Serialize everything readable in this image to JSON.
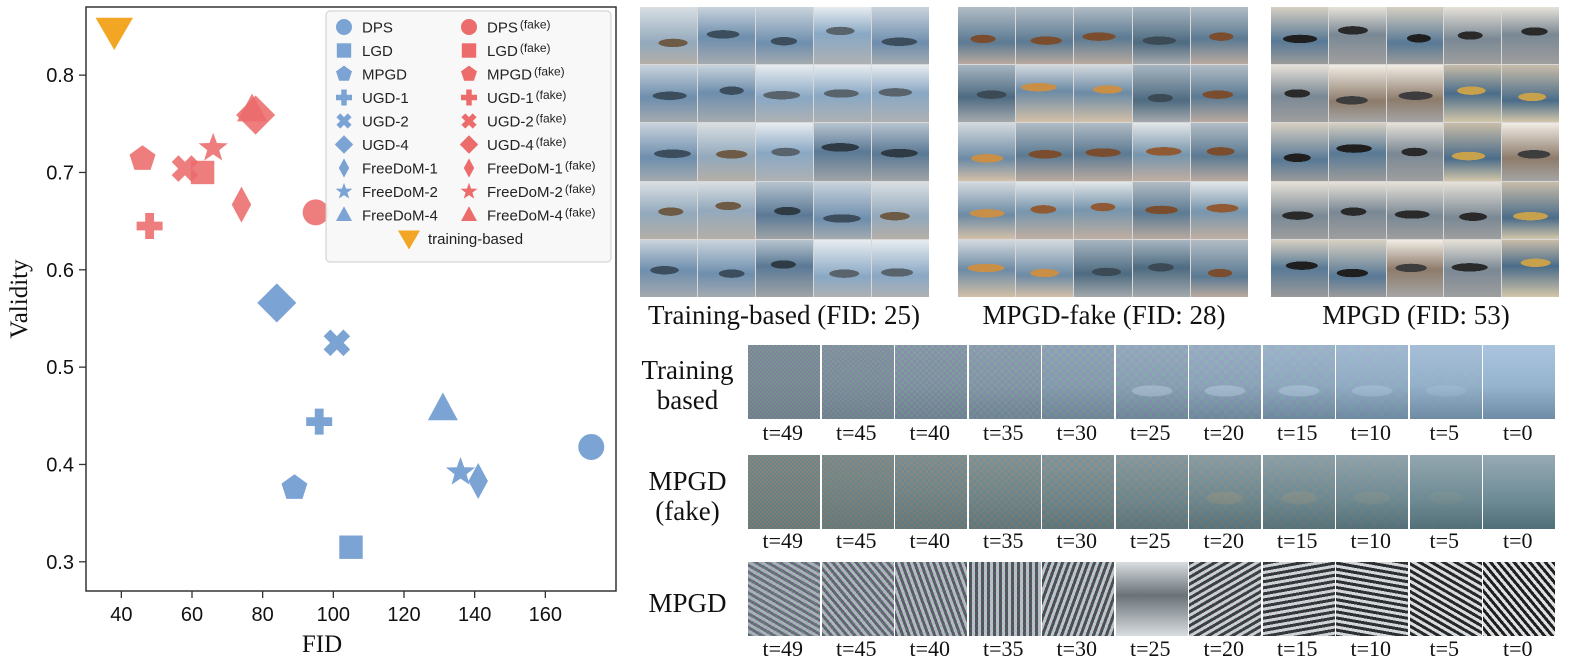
{
  "chart_data": {
    "type": "scatter",
    "xlabel": "FID",
    "ylabel": "Validity",
    "xlim": [
      30,
      180
    ],
    "ylim": [
      0.27,
      0.87
    ],
    "xticks": [
      40,
      60,
      80,
      100,
      120,
      140,
      160
    ],
    "yticks": [
      0.3,
      0.4,
      0.5,
      0.6,
      0.7,
      0.8
    ],
    "legend_position": "top-right",
    "colors": {
      "real": "#7ba3d4",
      "fake": "#ec6b6b",
      "training": "#f2a623"
    },
    "series": [
      {
        "name": "DPS",
        "marker": "circle",
        "group": "real",
        "x": 173,
        "y": 0.418
      },
      {
        "name": "LGD",
        "marker": "square",
        "group": "real",
        "x": 105,
        "y": 0.315
      },
      {
        "name": "MPGD",
        "marker": "pentagon",
        "group": "real",
        "x": 89,
        "y": 0.376
      },
      {
        "name": "UGD-1",
        "marker": "plus",
        "group": "real",
        "x": 96,
        "y": 0.444
      },
      {
        "name": "UGD-2",
        "marker": "x",
        "group": "real",
        "x": 101,
        "y": 0.525
      },
      {
        "name": "UGD-4",
        "marker": "diamond",
        "group": "real",
        "x": 84,
        "y": 0.566
      },
      {
        "name": "FreeDoM-1",
        "marker": "thin-diamond",
        "group": "real",
        "x": 141,
        "y": 0.383
      },
      {
        "name": "FreeDoM-2",
        "marker": "star",
        "group": "real",
        "x": 136,
        "y": 0.392
      },
      {
        "name": "FreeDoM-4",
        "marker": "triangle",
        "group": "real",
        "x": 131,
        "y": 0.457
      },
      {
        "name": "DPS",
        "suffix": "(fake)",
        "marker": "circle",
        "group": "fake",
        "x": 95,
        "y": 0.659
      },
      {
        "name": "LGD",
        "suffix": "(fake)",
        "marker": "square",
        "group": "fake",
        "x": 63,
        "y": 0.7
      },
      {
        "name": "MPGD",
        "suffix": "(fake)",
        "marker": "pentagon",
        "group": "fake",
        "x": 46,
        "y": 0.714
      },
      {
        "name": "UGD-1",
        "suffix": "(fake)",
        "marker": "plus",
        "group": "fake",
        "x": 48,
        "y": 0.645
      },
      {
        "name": "UGD-2",
        "suffix": "(fake)",
        "marker": "x",
        "group": "fake",
        "x": 58,
        "y": 0.704
      },
      {
        "name": "UGD-4",
        "suffix": "(fake)",
        "marker": "diamond",
        "group": "fake",
        "x": 78,
        "y": 0.759
      },
      {
        "name": "FreeDoM-1",
        "suffix": "(fake)",
        "marker": "thin-diamond",
        "group": "fake",
        "x": 74,
        "y": 0.667
      },
      {
        "name": "FreeDoM-2",
        "suffix": "(fake)",
        "marker": "star",
        "group": "fake",
        "x": 66,
        "y": 0.725
      },
      {
        "name": "FreeDoM-4",
        "suffix": "(fake)",
        "marker": "triangle",
        "group": "fake",
        "x": 77,
        "y": 0.764
      },
      {
        "name": "training-based",
        "marker": "triangle-down",
        "group": "training",
        "x": 38,
        "y": 0.845
      }
    ]
  },
  "image_grids": [
    {
      "key": "training",
      "title": "Training-based (FID: 25)"
    },
    {
      "key": "mpgd_fake",
      "title": "MPGD-fake (FID: 28)"
    },
    {
      "key": "mpgd",
      "title": "MPGD (FID: 53)"
    }
  ],
  "trajectories": {
    "timesteps": [
      "t=49",
      "t=45",
      "t=40",
      "t=35",
      "t=30",
      "t=25",
      "t=20",
      "t=15",
      "t=10",
      "t=5",
      "t=0"
    ],
    "rows": [
      {
        "key": "training",
        "label_line1": "Training",
        "label_line2": "based"
      },
      {
        "key": "mpgd_fake",
        "label_line1": "MPGD",
        "label_line2": "(fake)"
      },
      {
        "key": "mpgd",
        "label_line1": "MPGD",
        "label_line2": ""
      }
    ]
  }
}
